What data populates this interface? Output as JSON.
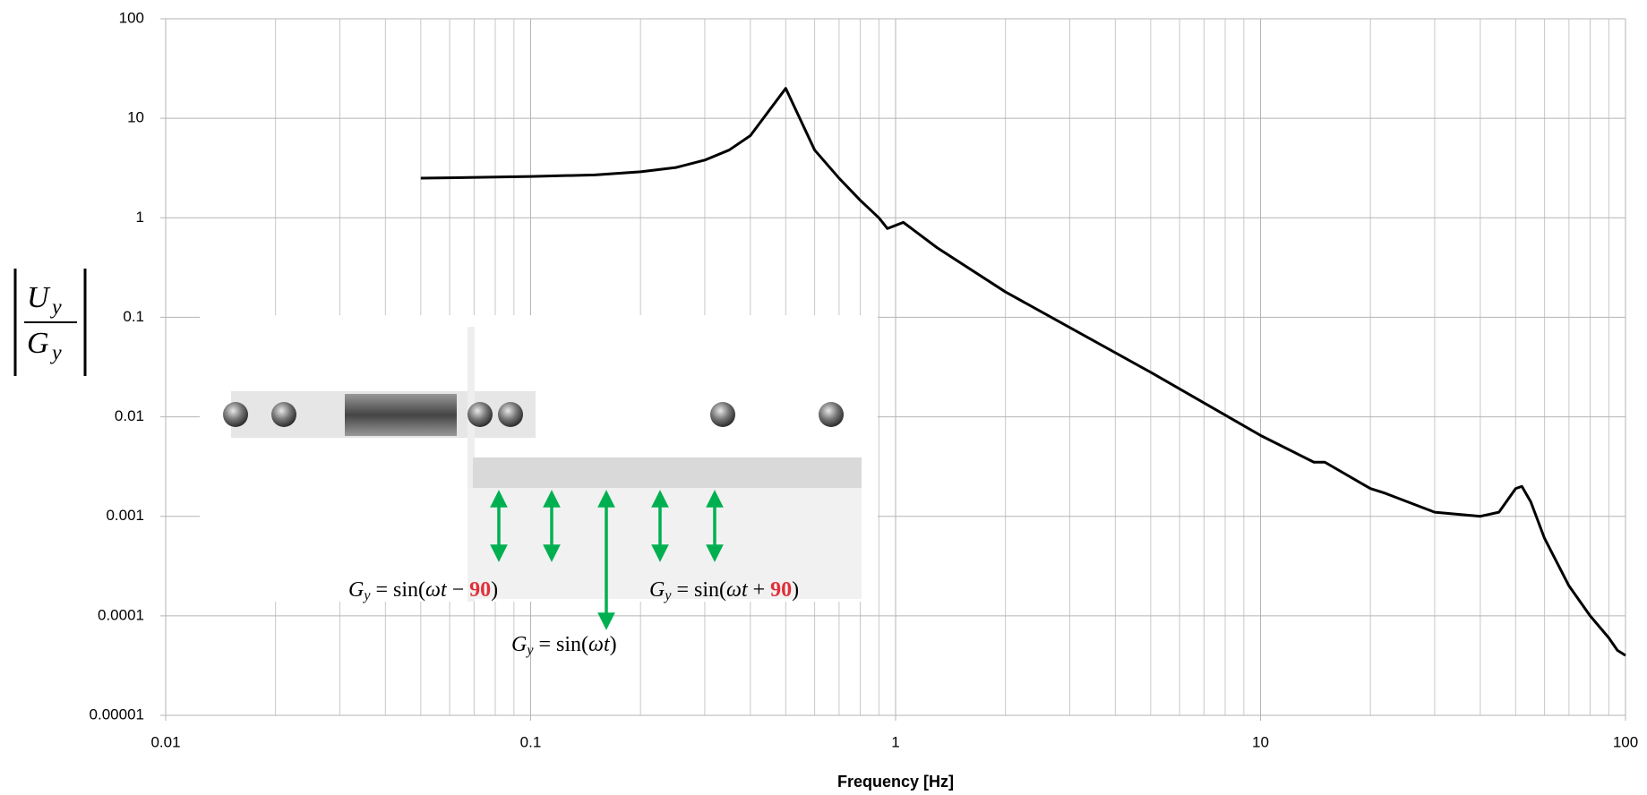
{
  "chart_data": {
    "type": "line",
    "xlabel": "Frequency [Hz]",
    "ylabel": {
      "numerator": "U",
      "numerator_sub": "y",
      "denominator": "G",
      "denominator_sub": "y"
    },
    "log_x": true,
    "log_y": true,
    "grid": true,
    "xlim": [
      0.01,
      100
    ],
    "xticks": [
      0.01,
      0.1,
      1,
      10,
      100
    ],
    "ylim": [
      1e-05,
      100
    ],
    "yticks": [
      100,
      10,
      1,
      0.1,
      0.01,
      0.001,
      0.0001,
      1e-05
    ],
    "series": [
      {
        "color": "#000000",
        "x": [
          0.05,
          0.1,
          0.15,
          0.2,
          0.25,
          0.3,
          0.35,
          0.4,
          0.5,
          0.6,
          0.7,
          0.8,
          0.9,
          0.95,
          1.05,
          1.3,
          2,
          5,
          10,
          14,
          15,
          20,
          22,
          30,
          40,
          45,
          50,
          52,
          55,
          60,
          70,
          80,
          90,
          95,
          100
        ],
        "values": [
          2.5,
          2.6,
          2.7,
          2.9,
          3.2,
          3.8,
          4.8,
          6.7,
          20,
          4.8,
          2.5,
          1.5,
          1.0,
          0.78,
          0.9,
          0.5,
          0.18,
          0.028,
          0.0065,
          0.0035,
          0.0035,
          0.0019,
          0.0017,
          0.0011,
          0.001,
          0.0011,
          0.0019,
          0.002,
          0.0014,
          0.0006,
          0.0002,
          0.0001,
          6e-05,
          4.5e-05,
          4e-05
        ]
      }
    ],
    "inset": {
      "labels": [
        {
          "lhs": "G",
          "sub": "y",
          "rhs": " = sin(",
          "var": "ωt",
          "op": " − ",
          "phase": "90",
          "close": ")"
        },
        {
          "lhs": "G",
          "sub": "y",
          "rhs": " = sin(",
          "var": "ωt",
          "op": " + ",
          "phase": "90",
          "close": ")"
        },
        {
          "lhs": "G",
          "sub": "y",
          "rhs": " = sin(",
          "var": "ωt",
          "close": ")"
        }
      ]
    }
  }
}
